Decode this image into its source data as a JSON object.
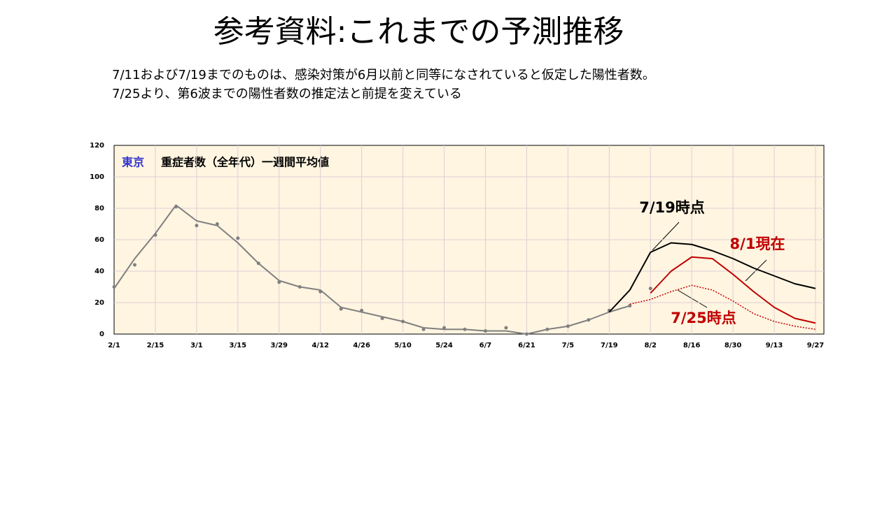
{
  "chart_data": {
    "type": "line",
    "title": "参考資料:これまでの予測推移",
    "subtitle": [
      "7/11および7/19までのものは、感染対策が6月以前と同等になされていると仮定した陽性者数。",
      "7/25より、第6波までの陽性者数の推定法と前提を変えている"
    ],
    "region_label": "東京",
    "chart_label": "重症者数（全年代）一週間平均値",
    "categories": [
      "2/1",
      null,
      "2/15",
      null,
      "3/1",
      null,
      "3/15",
      null,
      "3/29",
      null,
      "4/12",
      null,
      "4/26",
      null,
      "5/10",
      null,
      "5/24",
      null,
      "6/7",
      null,
      "6/21",
      null,
      "7/5",
      null,
      "7/19",
      null,
      "8/2",
      null,
      "8/16",
      null,
      "8/30",
      null,
      "9/13",
      null,
      "9/27"
    ],
    "ylim": [
      0,
      120
    ],
    "yticks": [
      0,
      20,
      40,
      60,
      80,
      100,
      120
    ],
    "grid": true,
    "series": [
      {
        "style": "dots",
        "color": "#808080",
        "values": [
          30,
          44,
          63,
          81,
          69,
          70,
          61,
          45,
          33,
          30,
          27,
          16,
          15,
          10,
          8,
          3,
          4,
          3,
          2,
          4,
          0,
          3,
          5,
          9,
          15,
          18,
          29,
          null,
          null,
          null,
          null,
          null,
          null,
          null,
          null
        ]
      },
      {
        "style": "solid",
        "color": "#808080",
        "values": [
          29,
          48,
          64,
          82,
          72,
          69,
          58,
          45,
          34,
          30,
          28,
          17,
          14,
          11,
          8,
          4,
          3,
          3,
          2,
          2,
          0,
          3,
          5,
          9,
          14,
          18,
          null,
          null,
          null,
          null,
          null,
          null,
          null,
          null,
          null
        ]
      },
      {
        "name": "7/19時点",
        "style": "solid",
        "color": "#000000",
        "values": [
          null,
          null,
          null,
          null,
          null,
          null,
          null,
          null,
          null,
          null,
          null,
          null,
          null,
          null,
          null,
          null,
          null,
          null,
          null,
          null,
          null,
          null,
          null,
          null,
          14,
          28,
          52,
          58,
          57,
          53,
          48,
          42,
          37,
          32,
          29
        ]
      },
      {
        "name": "8/1現在",
        "style": "solid",
        "color": "#c00000",
        "values": [
          null,
          null,
          null,
          null,
          null,
          null,
          null,
          null,
          null,
          null,
          null,
          null,
          null,
          null,
          null,
          null,
          null,
          null,
          null,
          null,
          null,
          null,
          null,
          null,
          null,
          null,
          26,
          40,
          49,
          48,
          38,
          27,
          17,
          10,
          7
        ]
      },
      {
        "name": "7/25時点",
        "style": "dotted",
        "color": "#c00000",
        "values": [
          null,
          null,
          null,
          null,
          null,
          null,
          null,
          null,
          null,
          null,
          null,
          null,
          null,
          null,
          null,
          null,
          null,
          null,
          null,
          null,
          null,
          null,
          null,
          null,
          null,
          19,
          22,
          27,
          31,
          28,
          21,
          13,
          8,
          5,
          3
        ]
      }
    ]
  }
}
